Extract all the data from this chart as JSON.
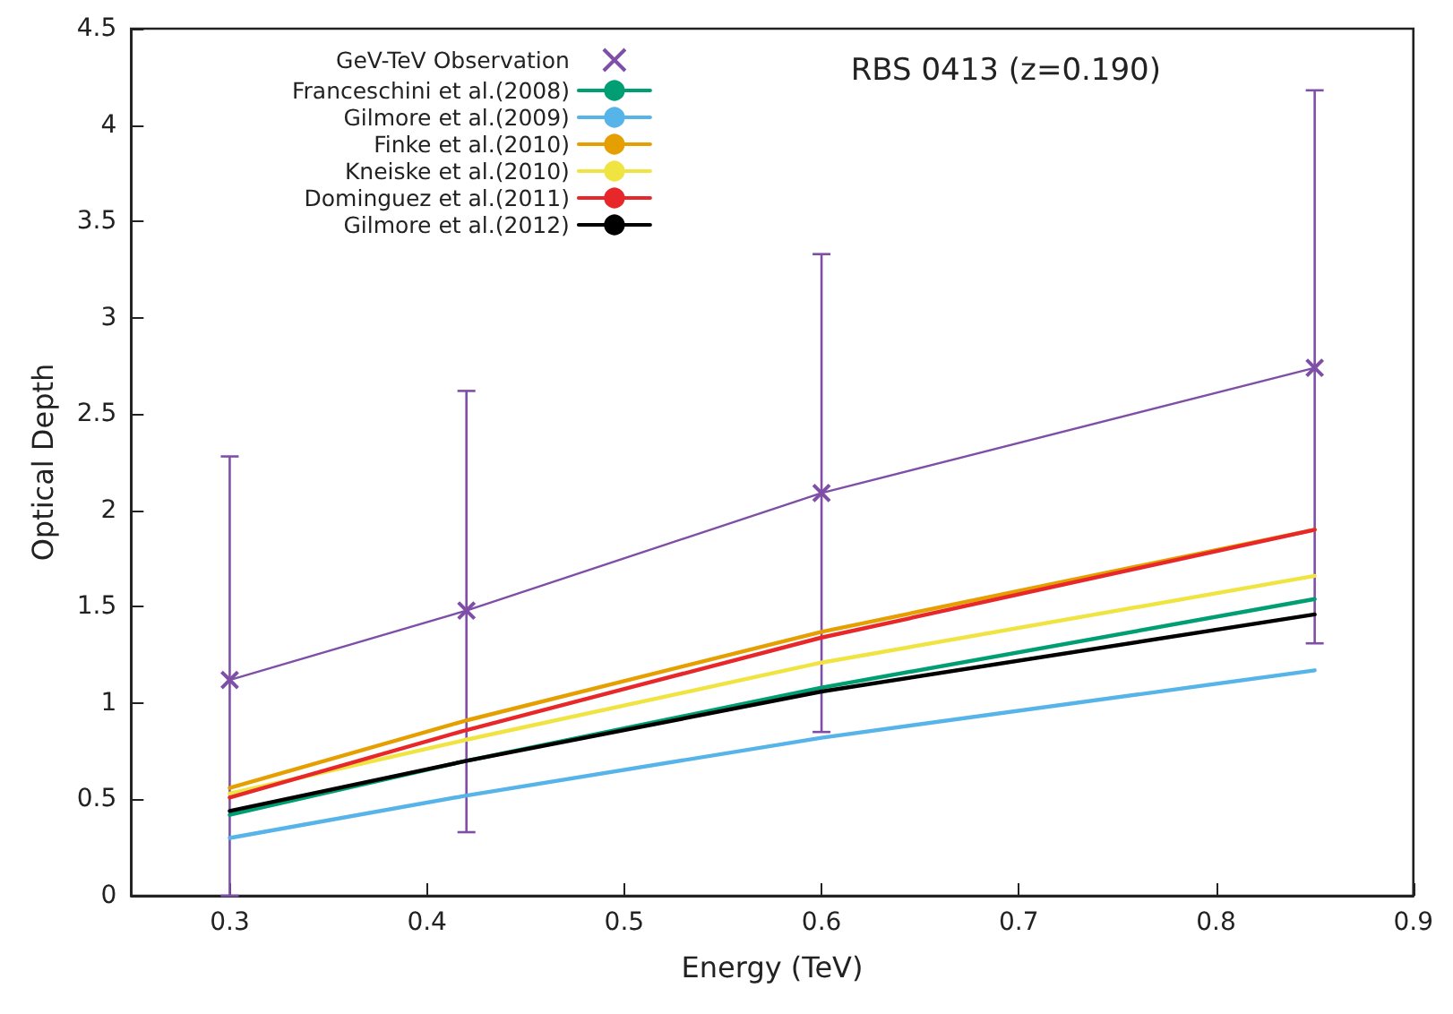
{
  "chart_data": {
    "type": "line",
    "title": "RBS 0413 (z=0.190)",
    "xlabel": "Energy (TeV)",
    "ylabel": "Optical Depth",
    "xlim": [
      0.25,
      0.9
    ],
    "xticks": [
      0.3,
      0.4,
      0.5,
      0.6,
      0.7,
      0.8,
      0.9
    ],
    "ylim": [
      0,
      4.5
    ],
    "yticks": [
      0,
      0.5,
      1,
      1.5,
      2,
      2.5,
      3,
      3.5,
      4,
      4.5
    ],
    "grid": false,
    "legend": "top left",
    "marker": "none",
    "line_style": "solid",
    "x": [
      0.3,
      0.42,
      0.6,
      0.85
    ],
    "series": [
      {
        "name": "GeV-TeV Observation",
        "color": "#7f4fa8",
        "marker": "cross",
        "values": [
          1.12,
          1.48,
          2.09,
          2.74
        ],
        "errors": [
          [
            0,
            2.28
          ],
          [
            0.33,
            2.62
          ],
          [
            0.85,
            3.33
          ],
          [
            1.31,
            4.18
          ]
        ]
      },
      {
        "name": "Franceschini et al.(2008)",
        "color": "#009e73",
        "values": [
          0.42,
          0.7,
          1.08,
          1.54
        ]
      },
      {
        "name": "Gilmore et al.(2009)",
        "color": "#56b4e9",
        "values": [
          0.3,
          0.52,
          0.82,
          1.17
        ]
      },
      {
        "name": "Finke et al.(2010)",
        "color": "#e69f00",
        "values": [
          0.56,
          0.91,
          1.37,
          1.9
        ]
      },
      {
        "name": "Kneiske et al.(2010)",
        "color": "#f0e442",
        "values": [
          0.53,
          0.81,
          1.21,
          1.66
        ]
      },
      {
        "name": "Dominguez et al.(2011)",
        "color": "#e8272a",
        "values": [
          0.51,
          0.86,
          1.34,
          1.9
        ]
      },
      {
        "name": "Gilmore et al.(2012)",
        "color": "#000000",
        "values": [
          0.44,
          0.7,
          1.06,
          1.46
        ]
      }
    ]
  }
}
